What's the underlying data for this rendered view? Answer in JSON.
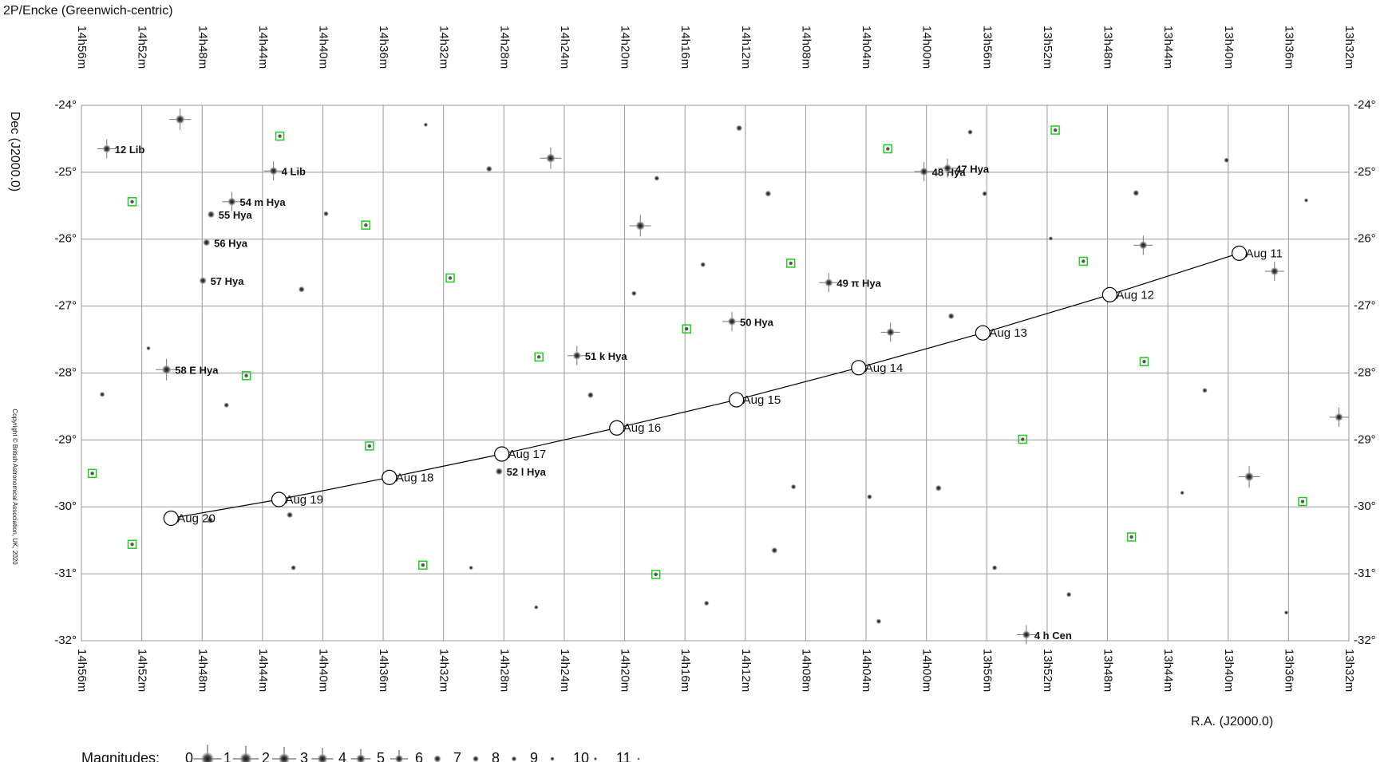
{
  "chart_data": {
    "type": "scatter",
    "title": "2P/Encke  (Greenwich-centric)",
    "x_label": "R.A. (J2000.0)",
    "y_label": "Dec (J2000.0)",
    "copyright": "Copyright © British Astronomical Association, UK, 2020",
    "xlim": [
      896,
      812
    ],
    "ylim": [
      -32,
      -24
    ],
    "xticks": [
      {
        "value": 896,
        "label": "14h56m"
      },
      {
        "value": 892,
        "label": "14h52m"
      },
      {
        "value": 888,
        "label": "14h48m"
      },
      {
        "value": 884,
        "label": "14h44m"
      },
      {
        "value": 880,
        "label": "14h40m"
      },
      {
        "value": 876,
        "label": "14h36m"
      },
      {
        "value": 872,
        "label": "14h32m"
      },
      {
        "value": 868,
        "label": "14h28m"
      },
      {
        "value": 864,
        "label": "14h24m"
      },
      {
        "value": 860,
        "label": "14h20m"
      },
      {
        "value": 856,
        "label": "14h16m"
      },
      {
        "value": 852,
        "label": "14h12m"
      },
      {
        "value": 848,
        "label": "14h08m"
      },
      {
        "value": 844,
        "label": "14h04m"
      },
      {
        "value": 840,
        "label": "14h00m"
      },
      {
        "value": 836,
        "label": "13h56m"
      },
      {
        "value": 832,
        "label": "13h52m"
      },
      {
        "value": 828,
        "label": "13h48m"
      },
      {
        "value": 824,
        "label": "13h44m"
      },
      {
        "value": 820,
        "label": "13h40m"
      },
      {
        "value": 816,
        "label": "13h36m"
      },
      {
        "value": 812,
        "label": "13h32m"
      }
    ],
    "yticks": [
      {
        "value": -24,
        "label": "-24°"
      },
      {
        "value": -25,
        "label": "-25°"
      },
      {
        "value": -26,
        "label": "-26°"
      },
      {
        "value": -27,
        "label": "-27°"
      },
      {
        "value": -28,
        "label": "-28°"
      },
      {
        "value": -29,
        "label": "-29°"
      },
      {
        "value": -30,
        "label": "-30°"
      },
      {
        "value": -31,
        "label": "-31°"
      },
      {
        "value": -32,
        "label": "-32°"
      }
    ],
    "grid": true,
    "grid_color": "#9a9a9a",
    "line_color": "#000000",
    "variable_color": "#22cc22",
    "comet": {
      "labels": [
        "Aug 11",
        "Aug 12",
        "Aug 13",
        "Aug 14",
        "Aug 15",
        "Aug 16",
        "Aug 17",
        "Aug 18",
        "Aug 19",
        "Aug 20"
      ],
      "x": [
        819.27,
        827.85,
        836.26,
        844.49,
        852.59,
        860.52,
        868.14,
        875.59,
        882.91,
        890.06
      ],
      "y": [
        -26.21,
        -26.83,
        -27.4,
        -27.92,
        -28.4,
        -28.82,
        -29.21,
        -29.56,
        -29.89,
        -30.17
      ]
    },
    "labeled_stars": {
      "labels": [
        "12 Lib",
        "4 Lib",
        "54 m Hya",
        "55 Hya",
        "56 Hya",
        "57 Hya",
        "58 E Hya",
        "48 Hya",
        "47 Hya",
        "49 π Hya",
        "50 Hya",
        "51 k Hya",
        "52 l Hya",
        "4 h Cen"
      ],
      "x": [
        894.32,
        883.27,
        886.03,
        887.41,
        887.71,
        887.95,
        890.36,
        840.16,
        838.6,
        846.47,
        852.89,
        863.16,
        868.32,
        833.38
      ],
      "y": [
        -24.65,
        -24.98,
        -25.44,
        -25.63,
        -26.05,
        -26.62,
        -27.95,
        -24.99,
        -24.94,
        -26.65,
        -27.23,
        -27.74,
        -29.47,
        -31.91
      ],
      "magnitudes": [
        5,
        5,
        5,
        6,
        6,
        6,
        4,
        5,
        5,
        5,
        5,
        5,
        6,
        5
      ]
    },
    "stars": {
      "x": [
        889.46,
        864.9,
        858.96,
        825.63,
        816.93,
        818.61,
        812.66,
        842.38,
        852.41,
        837.1,
        836.14,
        838.36,
        831.76,
        839.2,
        835.48,
        850.49,
        854.81,
        859.38,
        868.98,
        873.18,
        879.79,
        881.41,
        886.39,
        891.56,
        894.62,
        887.47,
        881.95,
        865.86,
        862.26,
        843.77,
        848.81,
        850.07,
        830.56,
        823.05,
        821.55,
        816.15,
        826.11,
        820.11,
        814.83,
        857.87,
        843.16,
        882.19,
        870.18,
        854.57
      ],
      "y": [
        -24.21,
        -24.79,
        -25.8,
        -26.09,
        -26.48,
        -29.55,
        -28.66,
        -27.39,
        -24.34,
        -24.4,
        -25.32,
        -27.15,
        -25.99,
        -29.72,
        -30.91,
        -25.32,
        -26.38,
        -26.81,
        -24.95,
        -24.29,
        -25.62,
        -26.75,
        -28.48,
        -27.63,
        -28.32,
        -30.2,
        -30.91,
        -31.5,
        -28.33,
        -29.85,
        -29.7,
        -30.65,
        -31.31,
        -29.79,
        -28.26,
        -31.58,
        -25.31,
        -24.82,
        -25.42,
        -25.09,
        -31.71,
        -30.12,
        -30.91,
        -31.44
      ],
      "magnitudes": [
        4,
        4,
        4,
        5,
        5,
        4,
        5,
        5,
        7,
        8,
        8,
        7,
        9,
        7,
        8,
        7,
        8,
        8,
        7,
        9,
        8,
        7,
        8,
        9,
        8,
        7,
        8,
        9,
        7,
        8,
        8,
        7,
        8,
        9,
        8,
        9,
        7,
        8,
        9,
        8,
        8,
        7,
        9,
        8
      ]
    },
    "variable_stars": {
      "x": [
        882.85,
        892.64,
        877.15,
        871.56,
        885.07,
        876.91,
        895.28,
        892.64,
        873.37,
        865.68,
        855.89,
        848.99,
        842.56,
        831.46,
        829.6,
        825.57,
        833.62,
        826.41,
        815.07,
        857.93
      ],
      "y": [
        -24.46,
        -25.44,
        -25.79,
        -26.58,
        -28.04,
        -29.09,
        -29.5,
        -30.56,
        -30.87,
        -27.76,
        -27.34,
        -26.36,
        -24.65,
        -24.37,
        -26.33,
        -27.83,
        -28.99,
        -30.45,
        -29.92,
        -31.01
      ]
    },
    "legend_title": "Magnitudes:",
    "legend_magnitudes": [
      0,
      1,
      2,
      3,
      4,
      5,
      6,
      7,
      8,
      9,
      10,
      11
    ]
  }
}
